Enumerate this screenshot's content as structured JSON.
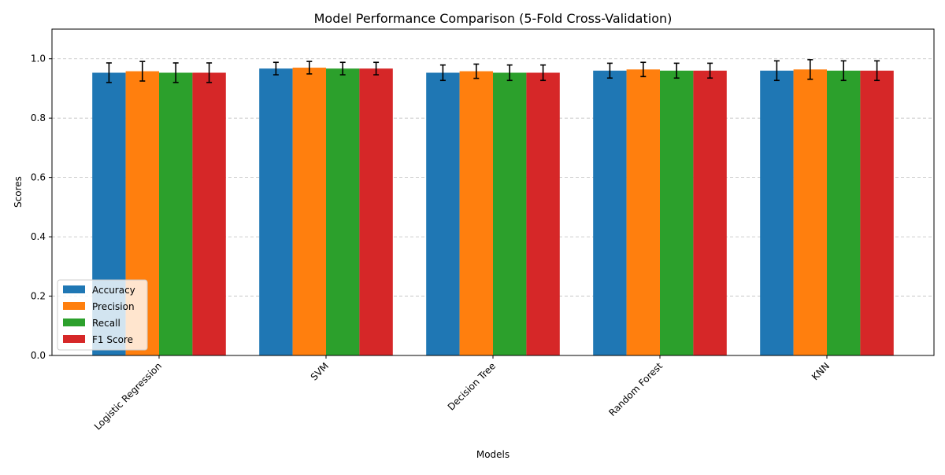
{
  "chart_data": {
    "type": "bar",
    "title": "Model Performance Comparison (5-Fold Cross-Validation)",
    "xlabel": "Models",
    "ylabel": "Scores",
    "ylim": [
      0,
      1.1
    ],
    "yticks": [
      0.0,
      0.2,
      0.4,
      0.6,
      0.8,
      1.0
    ],
    "ytick_labels": [
      "0.0",
      "0.2",
      "0.4",
      "0.6",
      "0.8",
      "1.0"
    ],
    "grid": "y-dashed",
    "legend_position": "lower-left",
    "categories": [
      "Logistic Regression",
      "SVM",
      "Decision Tree",
      "Random Forest",
      "KNN"
    ],
    "series": [
      {
        "name": "Accuracy",
        "color": "#1f77b4",
        "values": [
          0.953,
          0.967,
          0.953,
          0.96,
          0.96
        ],
        "errors": [
          0.033,
          0.021,
          0.026,
          0.025,
          0.033
        ]
      },
      {
        "name": "Precision",
        "color": "#ff7f0e",
        "values": [
          0.958,
          0.97,
          0.958,
          0.964,
          0.964
        ],
        "errors": [
          0.033,
          0.021,
          0.024,
          0.024,
          0.033
        ]
      },
      {
        "name": "Recall",
        "color": "#2ca02c",
        "values": [
          0.953,
          0.967,
          0.953,
          0.96,
          0.96
        ],
        "errors": [
          0.033,
          0.021,
          0.026,
          0.025,
          0.033
        ]
      },
      {
        "name": "F1 Score",
        "color": "#d62728",
        "values": [
          0.953,
          0.967,
          0.953,
          0.96,
          0.96
        ],
        "errors": [
          0.033,
          0.021,
          0.026,
          0.025,
          0.033
        ]
      }
    ]
  }
}
